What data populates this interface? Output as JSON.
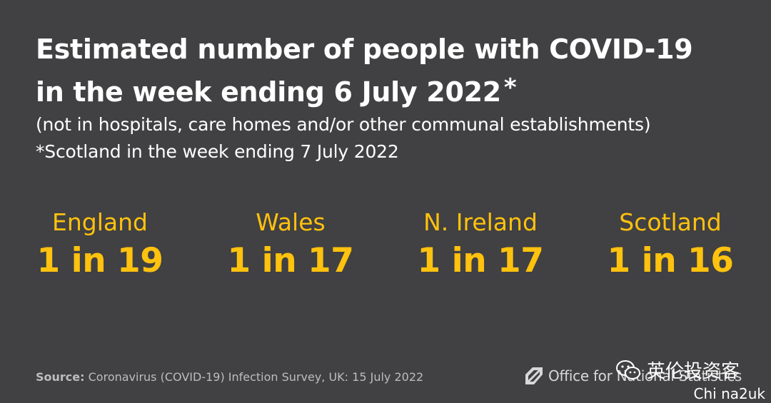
{
  "title": {
    "line1": "Estimated number of people with COVID-19",
    "line2": "in the week ending 6 July 2022",
    "asterisk": "*"
  },
  "subtitle": {
    "line1": "(not in hospitals, care homes and/or other communal establishments)",
    "line2": "*Scotland in the week ending 7 July 2022"
  },
  "nations": [
    {
      "name": "England",
      "value": "1 in 19"
    },
    {
      "name": "Wales",
      "value": "1 in 17"
    },
    {
      "name": "N. Ireland",
      "value": "1 in 17"
    },
    {
      "name": "Scotland",
      "value": "1 in 16"
    }
  ],
  "source": {
    "label": "Source:",
    "text": "Coronavirus (COVID-19) Infection Survey, UK: 15 July 2022"
  },
  "logo": {
    "text": "Office for National Statistics",
    "icon": "ons-logo-icon"
  },
  "watermark": {
    "account": "英伦投资客",
    "site": "Chi na2uk",
    "icon": "wechat-icon"
  },
  "colors": {
    "background": "#414042",
    "accent": "#ffc20e",
    "text": "#ffffff"
  }
}
